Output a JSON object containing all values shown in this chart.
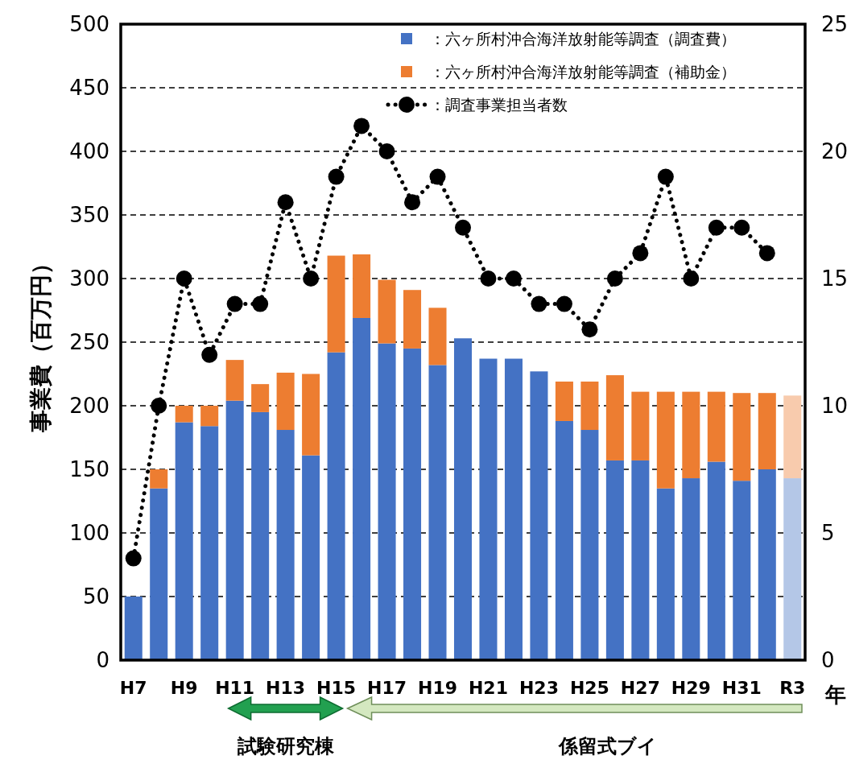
{
  "chart_data": {
    "type": "bar",
    "stacked": true,
    "categories": [
      "H7",
      null,
      "H9",
      null,
      "H11",
      null,
      "H13",
      null,
      "H15",
      null,
      "H17",
      null,
      "H19",
      null,
      "H21",
      null,
      "H23",
      null,
      "H25",
      null,
      "H27",
      null,
      "H29",
      null,
      "H31",
      null,
      "R3"
    ],
    "xlabel": "年",
    "ylabel": "事業費（百万円）",
    "ylim": [
      0,
      500
    ],
    "yticks": [
      0,
      50,
      100,
      150,
      200,
      250,
      300,
      350,
      400,
      450,
      500
    ],
    "y2lim": [
      0,
      25
    ],
    "y2ticks": [
      0,
      5,
      10,
      15,
      20,
      25
    ],
    "grid": "y",
    "legend": "top right",
    "series": [
      {
        "name": "：六ヶ所村沖合海洋放射能等調査（調査費）",
        "color": "#4472c4",
        "colors": [
          "#4472c4",
          "#4472c4",
          "#4472c4",
          "#4472c4",
          "#4472c4",
          "#4472c4",
          "#4472c4",
          "#4472c4",
          "#4472c4",
          "#4472c4",
          "#4472c4",
          "#4472c4",
          "#4472c4",
          "#4472c4",
          "#4472c4",
          "#4472c4",
          "#4472c4",
          "#4472c4",
          "#4472c4",
          "#4472c4",
          "#4472c4",
          "#4472c4",
          "#4472c4",
          "#4472c4",
          "#4472c4",
          "#4472c4",
          "#b4c7e7"
        ],
        "values": [
          50,
          135,
          187,
          184,
          204,
          195,
          181,
          161,
          242,
          269,
          249,
          245,
          232,
          253,
          237,
          237,
          227,
          188,
          181,
          157,
          157,
          135,
          143,
          156,
          141,
          150,
          143
        ]
      },
      {
        "name": "：六ヶ所村沖合海洋放射能等調査（補助金）",
        "color": "#ed7d31",
        "colors": [
          null,
          "#ed7d31",
          "#ed7d31",
          "#ed7d31",
          "#ed7d31",
          "#ed7d31",
          "#ed7d31",
          "#ed7d31",
          "#ed7d31",
          "#ed7d31",
          "#ed7d31",
          "#ed7d31",
          "#ed7d31",
          null,
          null,
          null,
          null,
          "#ed7d31",
          "#ed7d31",
          "#ed7d31",
          "#ed7d31",
          "#ed7d31",
          "#ed7d31",
          "#ed7d31",
          "#ed7d31",
          "#ed7d31",
          "#f8cbad"
        ],
        "values": [
          null,
          15,
          13,
          16,
          32,
          22,
          45,
          64,
          76,
          50,
          50,
          46,
          45,
          null,
          null,
          null,
          null,
          31,
          38,
          67,
          54,
          76,
          68,
          55,
          69,
          60,
          65
        ]
      },
      {
        "name": "：調査事業担当者数",
        "type": "line",
        "axis": "y2",
        "color": "#000000",
        "marker": "circle",
        "line_style": "dotted",
        "values": [
          4,
          10,
          15,
          12,
          14,
          14,
          18,
          15,
          19,
          21,
          20,
          18,
          19,
          17,
          15,
          15,
          14,
          14,
          13,
          15,
          16,
          19,
          15,
          17,
          17,
          16,
          null
        ]
      }
    ],
    "annotations": [
      "試験研究棟",
      "係留式ブイ"
    ]
  }
}
